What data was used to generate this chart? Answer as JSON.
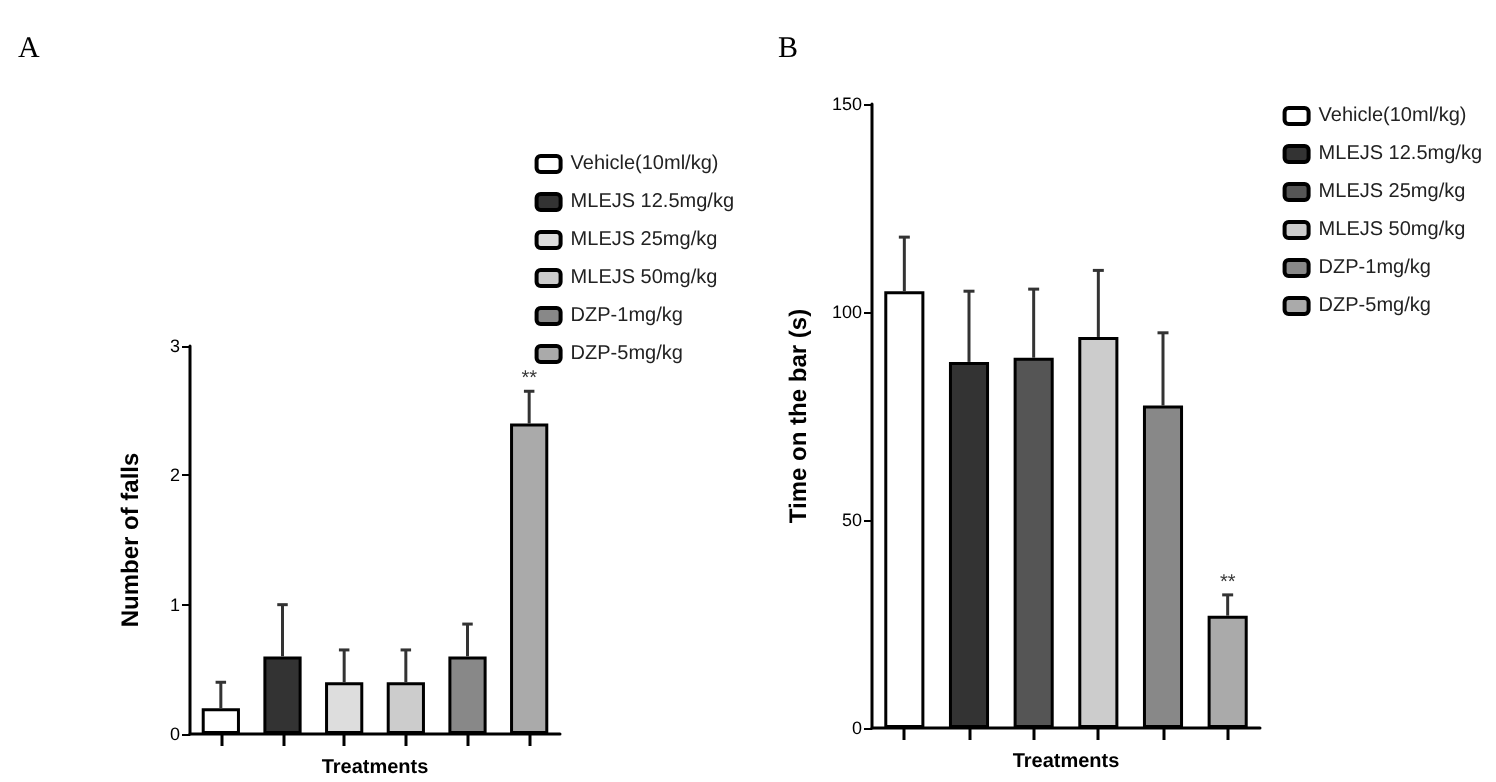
{
  "chart_data": [
    {
      "type": "bar",
      "title": "A",
      "xlabel": "Treatments",
      "ylabel": "Number of falls",
      "categories": [
        null,
        null,
        null,
        null,
        null,
        null
      ],
      "ylim": [
        0,
        3
      ],
      "yticks": [
        0,
        1,
        2,
        3
      ],
      "grid": false,
      "legend": "top right",
      "tick_labels": "y",
      "series": [
        {
          "name": "Vehicle(10ml/kg)",
          "color": "#ffffff",
          "values": [
            0.2,
            null,
            null,
            null,
            null,
            null
          ],
          "errors": [
            [
              0.2,
              0.4
            ],
            null,
            null,
            null,
            null,
            null
          ]
        },
        {
          "name": "MLEJS 12.5mg/kg",
          "color": "#333333",
          "values": [
            null,
            0.6,
            null,
            null,
            null,
            null
          ],
          "errors": [
            null,
            [
              0.6,
              1.0
            ],
            null,
            null,
            null,
            null
          ]
        },
        {
          "name": "MLEJS 25mg/kg",
          "color": "#dddddd",
          "values": [
            null,
            null,
            0.4,
            null,
            null,
            null
          ],
          "errors": [
            null,
            null,
            [
              0.4,
              0.65
            ],
            null,
            null,
            null
          ]
        },
        {
          "name": "MLEJS 50mg/kg",
          "color": "#cccccc",
          "values": [
            null,
            null,
            null,
            0.4,
            null,
            null
          ],
          "errors": [
            null,
            null,
            null,
            [
              0.4,
              0.65
            ],
            null,
            null
          ]
        },
        {
          "name": "DZP-1mg/kg",
          "color": "#888888",
          "values": [
            null,
            null,
            null,
            null,
            0.6,
            null
          ],
          "errors": [
            null,
            null,
            null,
            null,
            [
              0.6,
              0.85
            ],
            null
          ]
        },
        {
          "name": "DZP-5mg/kg",
          "color": "#aaaaaa",
          "values": [
            null,
            null,
            null,
            null,
            null,
            2.4
          ],
          "errors": [
            null,
            null,
            null,
            null,
            null,
            [
              2.4,
              2.65
            ]
          ],
          "value_labels": [
            null,
            null,
            null,
            null,
            null,
            "**"
          ]
        }
      ]
    },
    {
      "type": "bar",
      "title": "B",
      "xlabel": "Treatments",
      "ylabel": "Time on the bar (s)",
      "categories": [
        null,
        null,
        null,
        null,
        null,
        null
      ],
      "ylim": [
        0,
        150
      ],
      "yticks": [
        0,
        50,
        100,
        150
      ],
      "grid": false,
      "legend": "top right",
      "tick_labels": "y",
      "series": [
        {
          "name": "Vehicle(10ml/kg)",
          "color": "#ffffff",
          "values": [
            105,
            null,
            null,
            null,
            null,
            null
          ],
          "errors": [
            [
              105,
              118
            ],
            null,
            null,
            null,
            null,
            null
          ]
        },
        {
          "name": "MLEJS 12.5mg/kg",
          "color": "#333333",
          "values": [
            null,
            88,
            null,
            null,
            null,
            null
          ],
          "errors": [
            null,
            [
              88,
              105
            ],
            null,
            null,
            null,
            null
          ]
        },
        {
          "name": "MLEJS 25mg/kg",
          "color": "#555555",
          "values": [
            null,
            null,
            89,
            null,
            null,
            null
          ],
          "errors": [
            null,
            null,
            [
              89,
              105.5
            ],
            null,
            null,
            null
          ]
        },
        {
          "name": "MLEJS 50mg/kg",
          "color": "#cccccc",
          "values": [
            null,
            null,
            null,
            94,
            null,
            null
          ],
          "errors": [
            null,
            null,
            null,
            [
              94,
              110
            ],
            null,
            null
          ]
        },
        {
          "name": "DZP-1mg/kg",
          "color": "#888888",
          "values": [
            null,
            null,
            null,
            null,
            77.5,
            null
          ],
          "errors": [
            null,
            null,
            null,
            null,
            [
              77.5,
              95
            ],
            null
          ]
        },
        {
          "name": "DZP-5mg/kg",
          "color": "#aaaaaa",
          "values": [
            null,
            null,
            null,
            null,
            null,
            27
          ],
          "errors": [
            null,
            null,
            null,
            null,
            null,
            [
              27,
              32
            ]
          ],
          "value_labels": [
            null,
            null,
            null,
            null,
            null,
            "**"
          ]
        }
      ]
    }
  ]
}
